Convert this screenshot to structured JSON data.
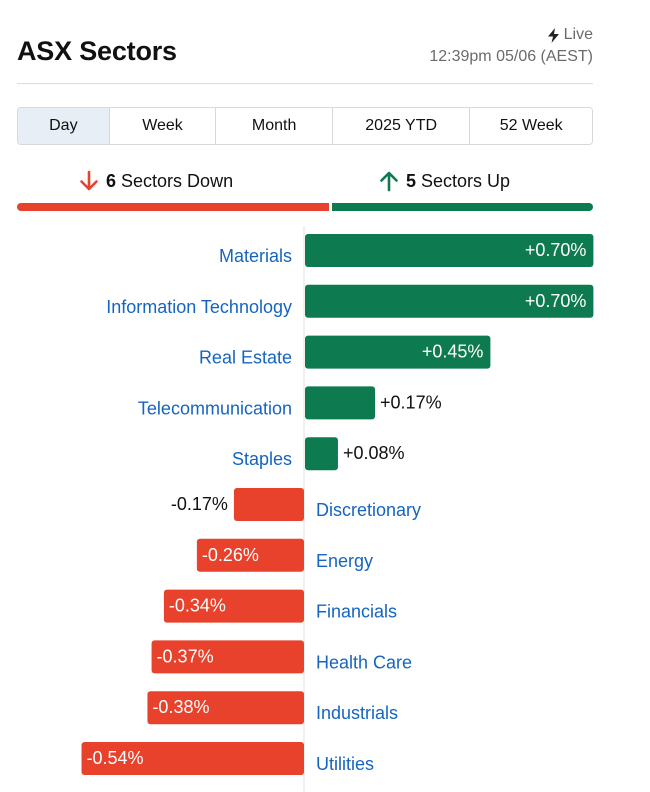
{
  "header": {
    "title": "ASX Sectors",
    "live_label": "Live",
    "timestamp": "12:39pm 05/06 (AEST)"
  },
  "tabs": [
    {
      "label": "Day",
      "active": true
    },
    {
      "label": "Week",
      "active": false
    },
    {
      "label": "Month",
      "active": false
    },
    {
      "label": "2025 YTD",
      "active": false
    },
    {
      "label": "52 Week",
      "active": false
    }
  ],
  "summary": {
    "down_count": "6",
    "down_label": "Sectors Down",
    "up_count": "5",
    "up_label": "Sectors Up"
  },
  "colors": {
    "up": "#0d7a4f",
    "down": "#e8412c",
    "label": "#1565c0"
  },
  "chart_data": {
    "type": "bar",
    "orientation": "horizontal-diverging",
    "unit": "%",
    "categories": [
      "Materials",
      "Information Technology",
      "Real Estate",
      "Telecommunication",
      "Staples",
      "Discretionary",
      "Energy",
      "Financials",
      "Health Care",
      "Industrials",
      "Utilities"
    ],
    "values": [
      0.7,
      0.7,
      0.45,
      0.17,
      0.08,
      -0.17,
      -0.26,
      -0.34,
      -0.37,
      -0.38,
      -0.54
    ],
    "labels": [
      "+0.70%",
      "+0.70%",
      "+0.45%",
      "+0.17%",
      "+0.08%",
      "-0.17%",
      "-0.26%",
      "-0.34%",
      "-0.37%",
      "-0.38%",
      "-0.54%"
    ]
  }
}
